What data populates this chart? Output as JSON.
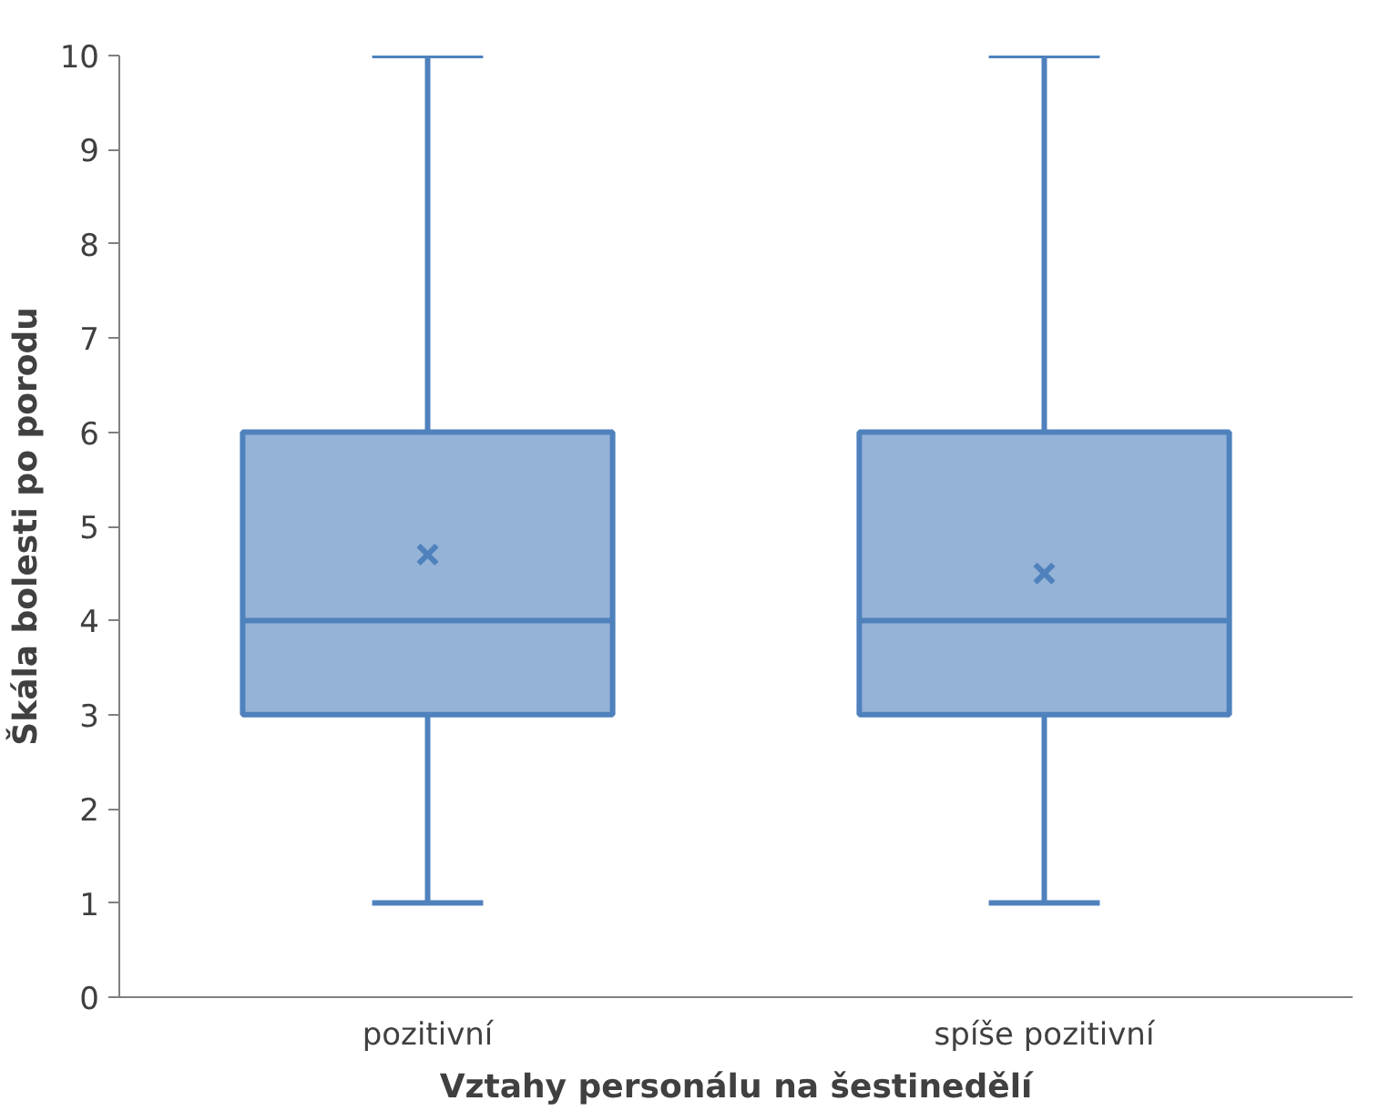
{
  "chart_data": {
    "type": "box",
    "xlabel": "Vztahy personálu na šestinedělí",
    "ylabel": "Škála bolesti po porodu",
    "categories": [
      "pozitivní",
      "spíše pozitivní"
    ],
    "series": [
      {
        "color": "#4f81bd",
        "colors": [
          "#95b3d7",
          "#95b3d7"
        ],
        "boxes": [
          {
            "low": 1,
            "q1": 3,
            "median": 4,
            "q3": 6,
            "high": 10,
            "mean": 4.7
          },
          {
            "low": 1,
            "q1": 3,
            "median": 4,
            "q3": 6,
            "high": 10,
            "mean": 4.5
          }
        ]
      }
    ],
    "ylim": [
      0,
      10
    ],
    "yticks": [
      0,
      1,
      2,
      3,
      4,
      5,
      6,
      7,
      8,
      9,
      10
    ],
    "grid": false
  }
}
